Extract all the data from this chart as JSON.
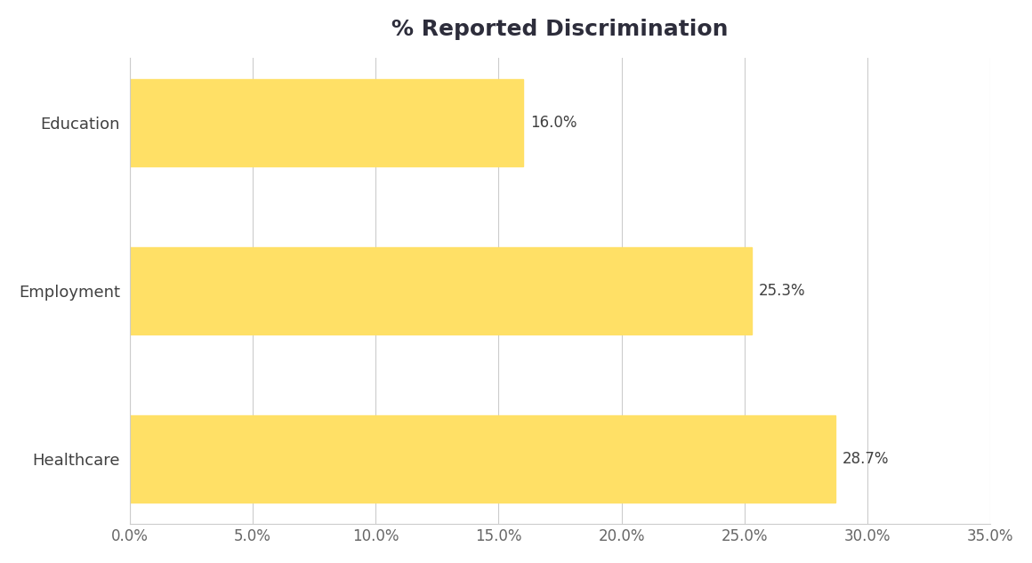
{
  "title": "% Reported Discrimination",
  "categories": [
    "Healthcare",
    "Employment",
    "Education"
  ],
  "values": [
    28.7,
    25.3,
    16.0
  ],
  "bar_color": "#FFE066",
  "label_color": "#404040",
  "title_color": "#2d2d3b",
  "axis_label_color": "#666666",
  "background_color": "#ffffff",
  "plot_background_color": "#ffffff",
  "xlim": [
    0,
    35
  ],
  "xticks": [
    0,
    5,
    10,
    15,
    20,
    25,
    30,
    35
  ],
  "title_fontsize": 18,
  "label_fontsize": 13,
  "tick_fontsize": 12,
  "value_label_fontsize": 12,
  "bar_height": 0.52
}
